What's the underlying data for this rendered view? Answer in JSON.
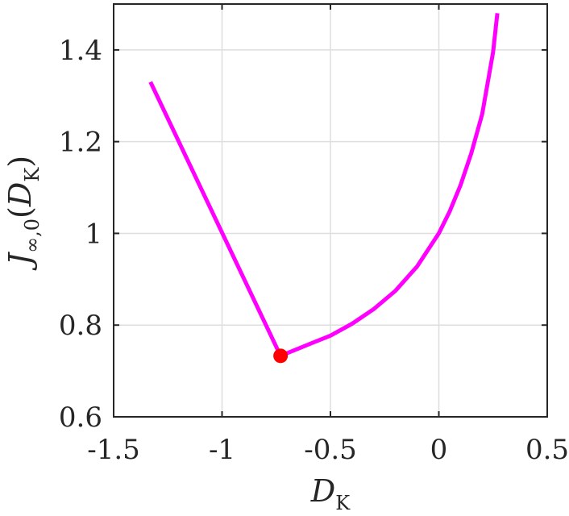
{
  "chart_data": {
    "type": "line",
    "title": "",
    "xlabel": {
      "main": "D",
      "sub": "K"
    },
    "ylabel": {
      "main": "J",
      "sub": "∞,0",
      "paren_main": "D",
      "paren_sub": "K"
    },
    "xlim": [
      -1.5,
      0.5
    ],
    "ylim": [
      0.6,
      1.5
    ],
    "grid": true,
    "x_ticks": [
      -1.5,
      -1,
      -0.5,
      0,
      0.5
    ],
    "x_tick_labels": [
      "-1.5",
      "-1",
      "-0.5",
      "0",
      "0.5"
    ],
    "y_ticks": [
      0.6,
      0.8,
      1,
      1.2,
      1.4
    ],
    "y_tick_labels": [
      "0.6",
      "0.8",
      "1",
      "1.2",
      "1.4"
    ],
    "series": [
      {
        "color": "#ff00ff",
        "x": [
          -1.33,
          -0.73,
          -0.6,
          -0.5,
          -0.4,
          -0.3,
          -0.2,
          -0.1,
          0.0,
          0.05,
          0.1,
          0.15,
          0.2,
          0.25,
          0.27
        ],
        "y": [
          1.33,
          0.733,
          0.758,
          0.777,
          0.803,
          0.835,
          0.875,
          0.928,
          1.0,
          1.048,
          1.105,
          1.175,
          1.26,
          1.395,
          1.48
        ]
      }
    ],
    "marker": {
      "x": -0.73,
      "y": 0.733,
      "color": "#ff0000"
    }
  }
}
